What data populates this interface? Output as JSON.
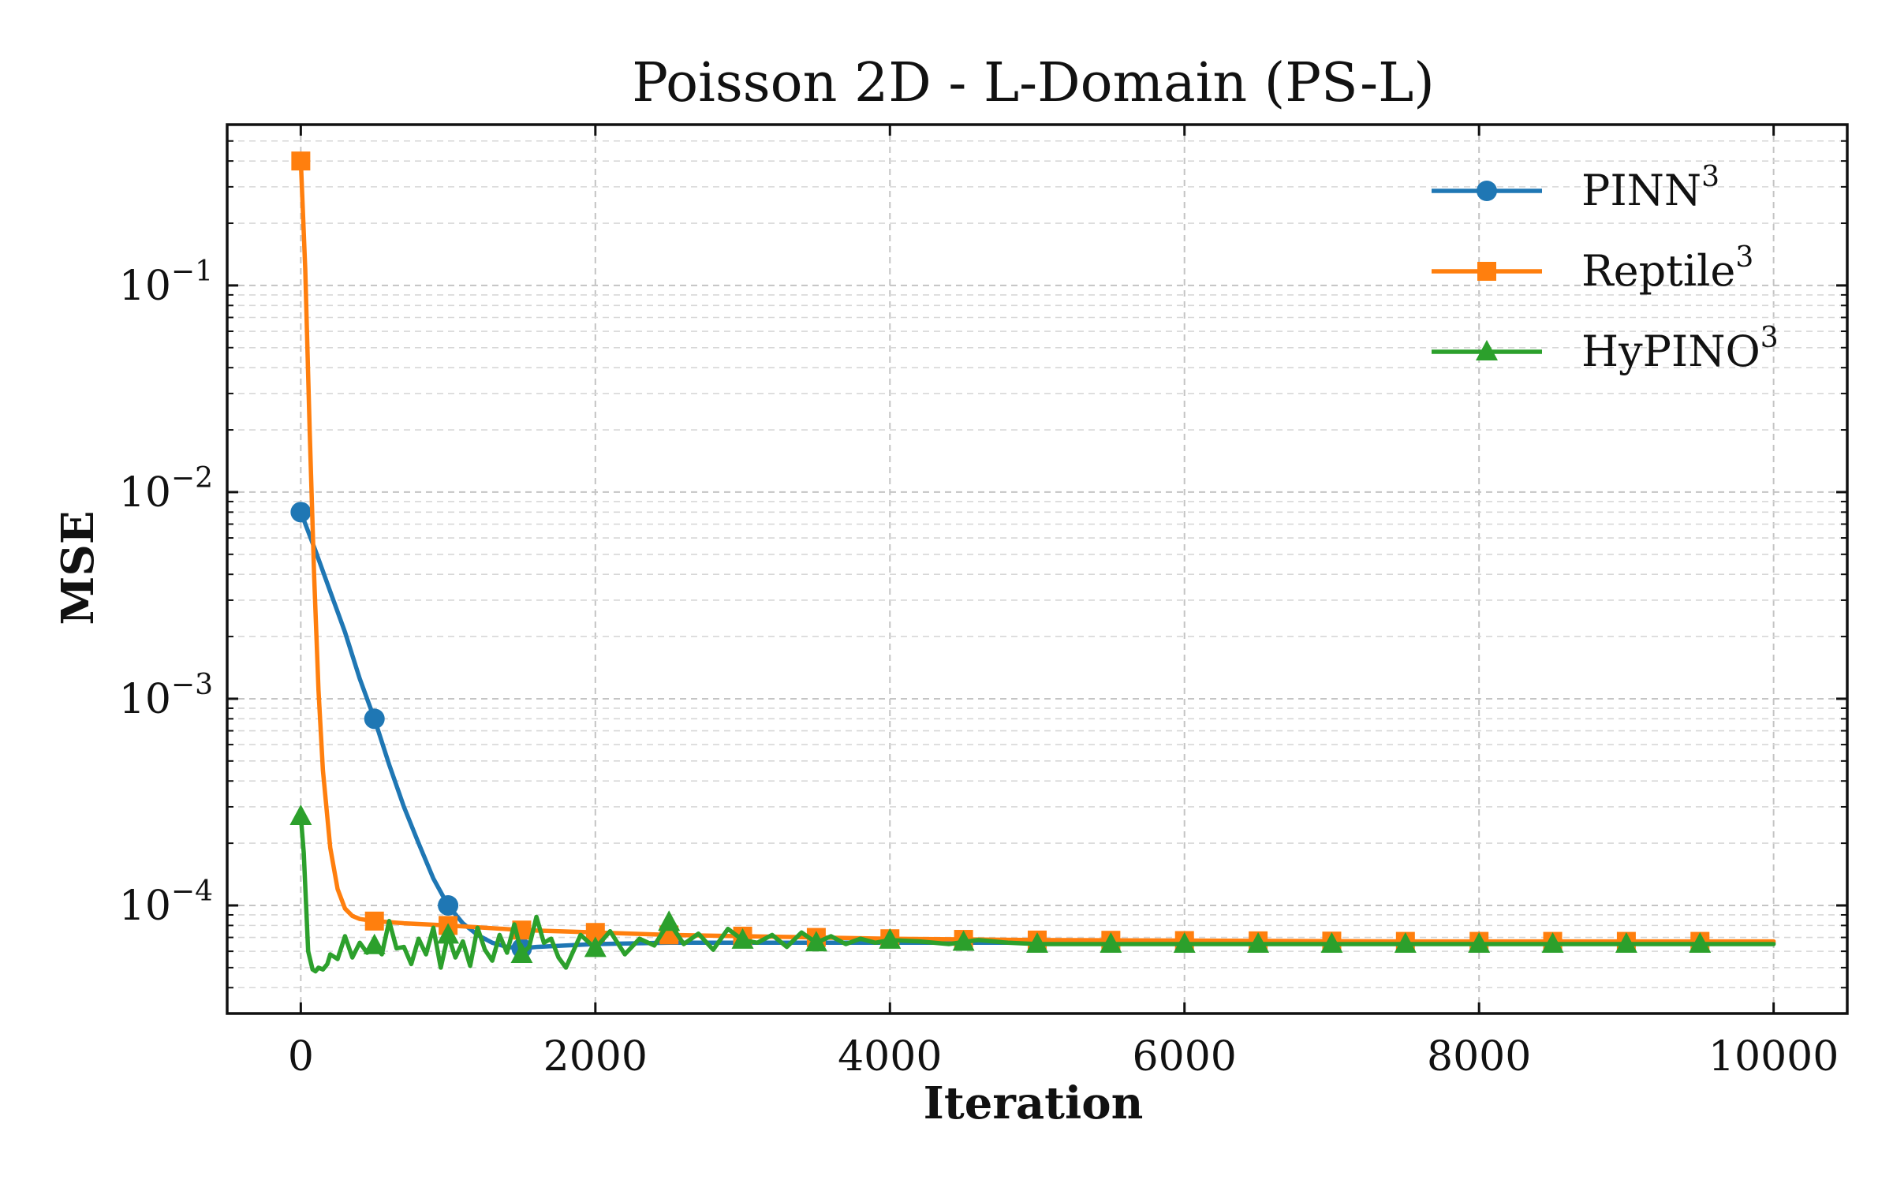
{
  "chart_data": {
    "type": "line",
    "title": "Poisson 2D - L-Domain (PS-L)",
    "xlabel": "Iteration",
    "ylabel": "MSE",
    "xlim": [
      -500,
      10500
    ],
    "ylim": [
      3e-05,
      0.6
    ],
    "yscale": "log",
    "x_ticks": [
      0,
      2000,
      4000,
      6000,
      8000,
      10000
    ],
    "x_tick_labels": [
      "0",
      "2000",
      "4000",
      "6000",
      "8000",
      "10000"
    ],
    "y_ticks": [
      0.0001,
      0.001,
      0.01,
      0.1
    ],
    "y_tick_labels": [
      {
        "base": "10",
        "exp": "−4"
      },
      {
        "base": "10",
        "exp": "−3"
      },
      {
        "base": "10",
        "exp": "−2"
      },
      {
        "base": "10",
        "exp": "−1"
      }
    ],
    "grid": true,
    "legend_position": "top-right",
    "series": [
      {
        "name": "PINN",
        "name_sup": "3",
        "color": "#1f77b4",
        "marker": "circle",
        "markers_x": [
          0,
          500,
          1000,
          1500
        ],
        "x": [
          0,
          100,
          200,
          300,
          400,
          500,
          600,
          700,
          800,
          900,
          1000,
          1100,
          1200,
          1300,
          1400,
          1500,
          1600,
          1800,
          2000,
          2500,
          3000,
          3500,
          4000,
          5000,
          6000,
          7000,
          8000,
          9000,
          10000
        ],
        "y": [
          0.008,
          0.0052,
          0.0033,
          0.0021,
          0.00125,
          0.0008,
          0.00048,
          0.0003,
          0.0002,
          0.000135,
          0.0001,
          8.2e-05,
          7.2e-05,
          6.6e-05,
          6.3e-05,
          6.2e-05,
          6.3e-05,
          6.4e-05,
          6.5e-05,
          6.6e-05,
          6.6e-05,
          6.6e-05,
          6.6e-05,
          6.6e-05,
          6.6e-05,
          6.6e-05,
          6.6e-05,
          6.6e-05,
          6.6e-05
        ]
      },
      {
        "name": "Reptile",
        "name_sup": "3",
        "color": "#ff7f0e",
        "marker": "square",
        "markers_x": [
          0,
          500,
          1000,
          1500,
          2000,
          2500,
          3000,
          3500,
          4000,
          4500,
          5000,
          5500,
          6000,
          6500,
          7000,
          7500,
          8000,
          8500,
          9000,
          9500
        ],
        "x": [
          0,
          30,
          60,
          90,
          120,
          150,
          200,
          250,
          300,
          350,
          400,
          500,
          700,
          1000,
          1500,
          2000,
          2500,
          3000,
          3500,
          4000,
          4500,
          5000,
          5500,
          6000,
          6500,
          7000,
          7500,
          8000,
          8500,
          9000,
          9500,
          10000
        ],
        "y": [
          0.4,
          0.12,
          0.02,
          0.004,
          0.0011,
          0.00045,
          0.00019,
          0.00012,
          9.65e-05,
          8.9e-05,
          8.6e-05,
          8.4e-05,
          8.2e-05,
          8e-05,
          7.6e-05,
          7.4e-05,
          7.2e-05,
          7.1e-05,
          7e-05,
          6.9e-05,
          6.85e-05,
          6.8e-05,
          6.78e-05,
          6.76e-05,
          6.74e-05,
          6.72e-05,
          6.7e-05,
          6.7e-05,
          6.7e-05,
          6.7e-05,
          6.7e-05,
          6.7e-05
        ]
      },
      {
        "name": "HyPINO",
        "name_sup": "3",
        "color": "#2ca02c",
        "marker": "triangle",
        "markers_x": [
          0,
          500,
          1000,
          1500,
          2000,
          2500,
          3000,
          3500,
          4000,
          4500,
          5000,
          5500,
          6000,
          6500,
          7000,
          7500,
          8000,
          8500,
          9000,
          9500
        ],
        "x": [
          0,
          20,
          50,
          80,
          100,
          120,
          150,
          180,
          200,
          250,
          300,
          350,
          400,
          450,
          500,
          550,
          600,
          650,
          700,
          750,
          800,
          850,
          900,
          950,
          1000,
          1050,
          1100,
          1150,
          1200,
          1250,
          1300,
          1350,
          1400,
          1450,
          1500,
          1550,
          1600,
          1650,
          1700,
          1750,
          1800,
          1900,
          2000,
          2100,
          2200,
          2300,
          2400,
          2500,
          2600,
          2700,
          2800,
          2900,
          3000,
          3100,
          3200,
          3300,
          3400,
          3500,
          3600,
          3700,
          3800,
          3900,
          4000,
          4200,
          4400,
          4600,
          4800,
          5000,
          5500,
          6000,
          6500,
          7000,
          7500,
          8000,
          8500,
          9000,
          9500,
          10000
        ],
        "y": [
          0.00027,
          0.00018,
          6e-05,
          4.9e-05,
          4.8e-05,
          5e-05,
          4.9e-05,
          5.2e-05,
          5.8e-05,
          5.5e-05,
          7.1e-05,
          5.6e-05,
          6.6e-05,
          5.9e-05,
          6.4e-05,
          5.8e-05,
          8.4e-05,
          6.2e-05,
          6.3e-05,
          5.2e-05,
          6.9e-05,
          5.8e-05,
          7.8e-05,
          5e-05,
          7.2e-05,
          5.6e-05,
          6.7e-05,
          5.1e-05,
          7.8e-05,
          6.1e-05,
          5.4e-05,
          7.2e-05,
          5.9e-05,
          8.1e-05,
          5.8e-05,
          6.3e-05,
          8.8e-05,
          6.6e-05,
          6.9e-05,
          5.6e-05,
          5e-05,
          7.2e-05,
          6.2e-05,
          7.5e-05,
          5.8e-05,
          6.9e-05,
          6.4e-05,
          8.3e-05,
          6.5e-05,
          7.3e-05,
          6.1e-05,
          7.7e-05,
          6.8e-05,
          6.6e-05,
          7.2e-05,
          6.3e-05,
          7.4e-05,
          6.6e-05,
          7.1e-05,
          6.5e-05,
          6.9e-05,
          6.6e-05,
          6.8e-05,
          6.7e-05,
          6.5e-05,
          6.8e-05,
          6.6e-05,
          6.5e-05,
          6.5e-05,
          6.5e-05,
          6.5e-05,
          6.5e-05,
          6.5e-05,
          6.5e-05,
          6.5e-05,
          6.5e-05,
          6.5e-05,
          6.5e-05
        ]
      }
    ]
  }
}
